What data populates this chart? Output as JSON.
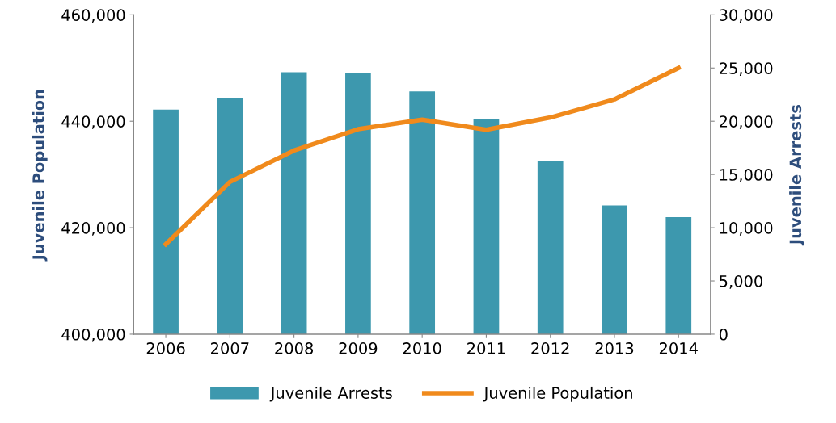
{
  "chart_data": {
    "type": "bar",
    "categories": [
      "2006",
      "2007",
      "2008",
      "2009",
      "2010",
      "2011",
      "2012",
      "2013",
      "2014"
    ],
    "ylabel": "Juvenile Population",
    "y2label": "Juvenile Arrests",
    "series": [
      {
        "name": "Juvenile Arrests",
        "axis": "y2",
        "color": "#3d98ae",
        "values": [
          21100,
          22200,
          24600,
          24500,
          22800,
          20200,
          16300,
          12100,
          11000
        ]
      },
      {
        "name": "Juvenile Population",
        "type": "line",
        "axis": "y",
        "color": "#f08a1c",
        "values": [
          416900,
          428600,
          434500,
          438500,
          440300,
          438400,
          440700,
          444100,
          450000
        ]
      }
    ],
    "ylim": [
      400000,
      460000
    ],
    "yticks": [
      {
        "value": 400000,
        "label": "400,000"
      },
      {
        "value": 420000,
        "label": "420,000"
      },
      {
        "value": 440000,
        "label": "440,000"
      },
      {
        "value": 460000,
        "label": "460,000"
      }
    ],
    "y2lim": [
      0,
      30000
    ],
    "y2ticks": [
      0,
      {
        "value": 5000,
        "label": "5,000"
      },
      {
        "value": 10000,
        "label": "10,000"
      },
      {
        "value": 15000,
        "label": "15,000"
      },
      {
        "value": 20000,
        "label": "20,000"
      },
      {
        "value": 25000,
        "label": "25,000"
      },
      {
        "value": 30000,
        "label": "30,000"
      }
    ],
    "grid": false,
    "legend": "bottom",
    "marker": "none",
    "line_style": "solid"
  }
}
